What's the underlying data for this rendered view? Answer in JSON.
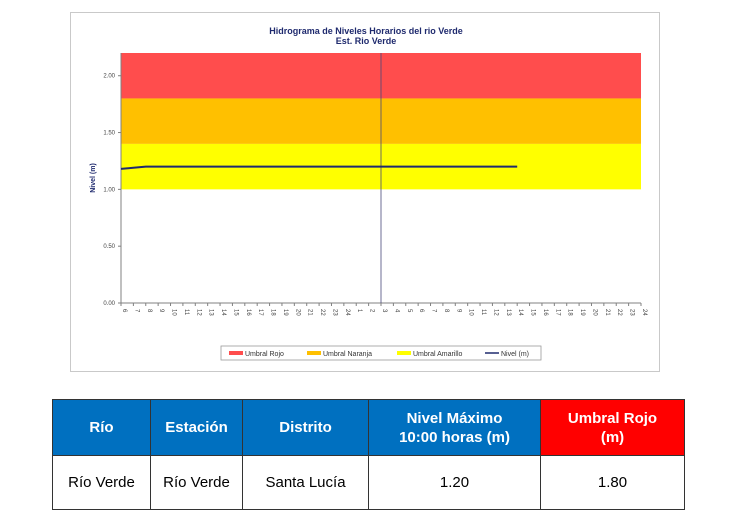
{
  "chart_data": {
    "type": "line",
    "title": "Hidrograma de Niveles Horarios del rio Verde",
    "subtitle": "Est. Rio Verde",
    "ylabel": "Nivel (m)",
    "xlabel": "",
    "ylim": [
      0,
      2.2
    ],
    "yticks": [
      "0.00",
      "0.50",
      "1.00",
      "1.50",
      "2.00"
    ],
    "ytick_values": [
      0,
      0.5,
      1.0,
      1.5,
      2.0
    ],
    "x_ticks": [
      "6",
      "7",
      "8",
      "9",
      "10",
      "11",
      "12",
      "13",
      "14",
      "15",
      "16",
      "17",
      "18",
      "19",
      "20",
      "21",
      "22",
      "23",
      "24",
      "1",
      "2",
      "3",
      "4",
      "5",
      "6",
      "7",
      "8",
      "9",
      "10",
      "11",
      "12",
      "13",
      "14",
      "15",
      "16",
      "17",
      "18",
      "19",
      "20",
      "21",
      "22",
      "23",
      "24"
    ],
    "grid": false,
    "day_separator_index": 21,
    "bands": [
      {
        "name": "Umbral Rojo",
        "from": 1.8,
        "to": 2.2,
        "color": "#ff4d4d"
      },
      {
        "name": "Umbral Naranja",
        "from": 1.4,
        "to": 1.8,
        "color": "#ffc000"
      },
      {
        "name": "Umbral Amarillo",
        "from": 1.0,
        "to": 1.4,
        "color": "#ffff00"
      }
    ],
    "series": [
      {
        "name": "Nivel (m)",
        "color": "#1f2a6e",
        "values": [
          1.18,
          1.19,
          1.2,
          1.2,
          1.2,
          1.2,
          1.2,
          1.2,
          1.2,
          1.2,
          1.2,
          1.2,
          1.2,
          1.2,
          1.2,
          1.2,
          1.2,
          1.2,
          1.2,
          1.2,
          1.2,
          1.2,
          1.2,
          1.2,
          1.2,
          1.2,
          1.2,
          1.2,
          1.2,
          1.2,
          1.2,
          1.2,
          1.2
        ]
      }
    ],
    "legend": [
      "Umbral Rojo",
      "Umbral Naranja",
      "Umbral Amarillo",
      "Nivel (m)"
    ],
    "legend_position": "bottom"
  },
  "table": {
    "headers": {
      "rio": "Río",
      "estacion": "Estación",
      "distrito": "Distrito",
      "nivel_max_line1": "Nivel Máximo",
      "nivel_max_line2": "10:00 horas (m)",
      "umbral_line1": "Umbral Rojo",
      "umbral_line2": "(m)"
    },
    "row": {
      "rio": "Río Verde",
      "estacion": "Río Verde",
      "distrito": "Santa Lucía",
      "nivel_max": "1.20",
      "umbral_rojo": "1.80"
    },
    "colors": {
      "header_blue": "#0070c0",
      "header_red": "#ff0000"
    }
  }
}
